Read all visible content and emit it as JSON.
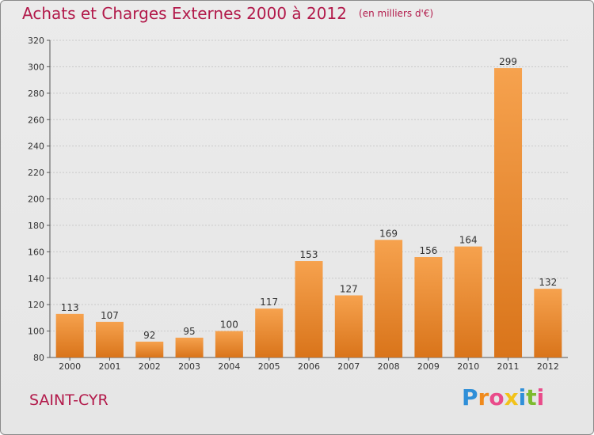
{
  "title": "Achats et Charges Externes 2000 à 2012",
  "subtitle": "(en milliers d'€)",
  "location": "SAINT-CYR",
  "brand": {
    "letters": [
      "P",
      "r",
      "o",
      "x",
      "i",
      "t",
      "i"
    ],
    "colors": [
      "#2f8fd8",
      "#f08a1c",
      "#e94b8a",
      "#f2c21a",
      "#2f8fd8",
      "#7dbb2f",
      "#e94b8a"
    ]
  },
  "colors": {
    "title": "#b2194a",
    "bar_light": "#f6a24e",
    "bar_dark": "#d9741a",
    "grid": "#c9c9c9"
  },
  "chart_data": {
    "type": "bar",
    "title": "Achats et Charges Externes 2000 à 2012",
    "subtitle": "(en milliers d'€)",
    "categories": [
      "2000",
      "2001",
      "2002",
      "2003",
      "2004",
      "2005",
      "2006",
      "2007",
      "2008",
      "2009",
      "2010",
      "2011",
      "2012"
    ],
    "values": [
      113,
      107,
      92,
      95,
      100,
      117,
      153,
      127,
      169,
      156,
      164,
      299,
      132
    ],
    "xlabel": "",
    "ylabel": "",
    "ylim": [
      80,
      320
    ],
    "yticks": [
      80,
      100,
      120,
      140,
      160,
      180,
      200,
      220,
      240,
      260,
      280,
      300,
      320
    ],
    "grid": true,
    "data_labels": true
  }
}
